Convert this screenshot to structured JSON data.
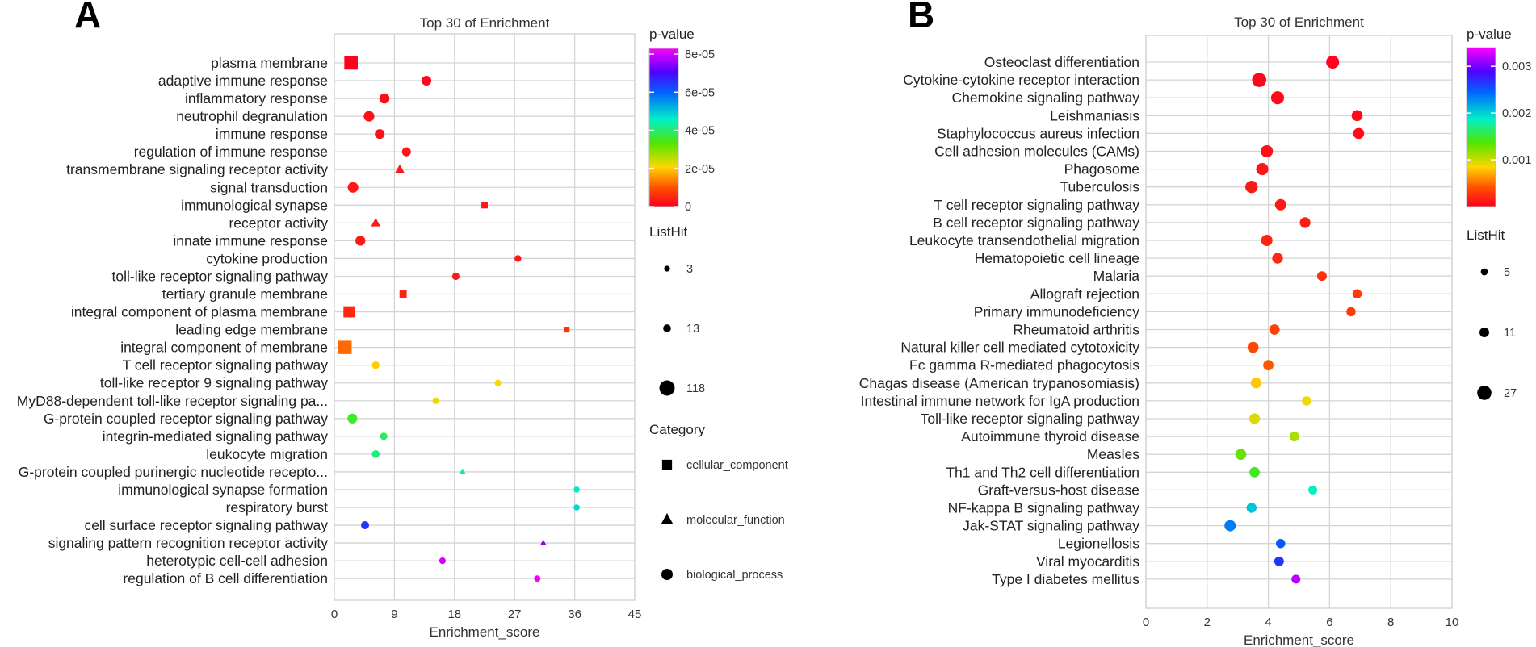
{
  "chart_data": [
    {
      "panel_label": "A",
      "type": "scatter",
      "title": "Top 30 of  Enrichment",
      "xlabel": "Enrichment_score",
      "xlim": [
        0,
        45
      ],
      "xticks": [
        "0",
        "9",
        "18",
        "27",
        "36",
        "45"
      ],
      "color_legend": {
        "title": "p-value",
        "min": 0,
        "max": 8.3e-05,
        "ticks": [
          "0",
          "2e-05",
          "4e-05",
          "6e-05",
          "8e-05"
        ],
        "tick_values": [
          0,
          2e-05,
          4e-05,
          6e-05,
          8e-05
        ]
      },
      "size_legend": {
        "title": "ListHit",
        "values": [
          "3",
          "13",
          "118"
        ]
      },
      "shape_legend": {
        "title": "Category",
        "items": [
          {
            "label": "cellular_component",
            "shape": "square"
          },
          {
            "label": "molecular_function",
            "shape": "triangle"
          },
          {
            "label": "biological_process",
            "shape": "circle"
          }
        ]
      },
      "points": [
        {
          "term": "plasma membrane",
          "x": 2.5,
          "p": 2e-07,
          "hits": 118,
          "category": "cellular_component"
        },
        {
          "term": "adaptive immune response",
          "x": 13.8,
          "p": 1e-06,
          "hits": 30,
          "category": "biological_process"
        },
        {
          "term": "inflammatory response",
          "x": 7.5,
          "p": 1.5e-06,
          "hits": 35,
          "category": "biological_process"
        },
        {
          "term": "neutrophil degranulation",
          "x": 5.2,
          "p": 2e-06,
          "hits": 40,
          "category": "biological_process"
        },
        {
          "term": "immune response",
          "x": 6.8,
          "p": 2e-06,
          "hits": 30,
          "category": "biological_process"
        },
        {
          "term": "regulation of immune response",
          "x": 10.8,
          "p": 2.5e-06,
          "hits": 22,
          "category": "biological_process"
        },
        {
          "term": "transmembrane signaling receptor activity",
          "x": 9.8,
          "p": 3e-06,
          "hits": 25,
          "category": "molecular_function"
        },
        {
          "term": "signal transduction",
          "x": 2.8,
          "p": 3e-06,
          "hits": 40,
          "category": "biological_process"
        },
        {
          "term": "immunological synapse",
          "x": 22.5,
          "p": 3e-06,
          "hits": 10,
          "category": "cellular_component"
        },
        {
          "term": "receptor activity",
          "x": 6.2,
          "p": 3e-06,
          "hits": 22,
          "category": "molecular_function"
        },
        {
          "term": "innate immune response",
          "x": 3.9,
          "p": 3e-06,
          "hits": 32,
          "category": "biological_process"
        },
        {
          "term": "cytokine production",
          "x": 27.5,
          "p": 3e-06,
          "hits": 7,
          "category": "biological_process"
        },
        {
          "term": "toll-like receptor signaling pathway",
          "x": 18.2,
          "p": 3e-06,
          "hits": 10,
          "category": "biological_process"
        },
        {
          "term": "tertiary granule membrane",
          "x": 10.3,
          "p": 4e-06,
          "hits": 16,
          "category": "cellular_component"
        },
        {
          "term": "integral component of plasma membrane",
          "x": 2.2,
          "p": 5e-06,
          "hits": 70,
          "category": "cellular_component"
        },
        {
          "term": "leading edge membrane",
          "x": 34.8,
          "p": 6e-06,
          "hits": 6,
          "category": "cellular_component"
        },
        {
          "term": "integral component of membrane",
          "x": 1.6,
          "p": 1.2e-05,
          "hits": 115,
          "category": "cellular_component"
        },
        {
          "term": "T cell receptor signaling pathway",
          "x": 6.2,
          "p": 2e-05,
          "hits": 12,
          "category": "biological_process"
        },
        {
          "term": "toll-like receptor 9 signaling pathway",
          "x": 24.5,
          "p": 2.1e-05,
          "hits": 6,
          "category": "biological_process"
        },
        {
          "term": "MyD88-dependent toll-like receptor signaling pa...",
          "x": 15.2,
          "p": 2.2e-05,
          "hits": 6,
          "category": "biological_process"
        },
        {
          "term": "G-protein coupled receptor signaling pathway",
          "x": 2.7,
          "p": 3.6e-05,
          "hits": 30,
          "category": "biological_process"
        },
        {
          "term": "integrin-mediated signaling pathway",
          "x": 7.4,
          "p": 3.9e-05,
          "hits": 10,
          "category": "biological_process"
        },
        {
          "term": "leukocyte migration",
          "x": 6.2,
          "p": 4.1e-05,
          "hits": 13,
          "category": "biological_process"
        },
        {
          "term": "G-protein coupled purinergic nucleotide recepto...",
          "x": 19.2,
          "p": 4.3e-05,
          "hits": 5,
          "category": "molecular_function"
        },
        {
          "term": "immunological synapse formation",
          "x": 36.3,
          "p": 4.6e-05,
          "hits": 4,
          "category": "biological_process"
        },
        {
          "term": "respiratory burst",
          "x": 36.3,
          "p": 4.8e-05,
          "hits": 4,
          "category": "biological_process"
        },
        {
          "term": "cell surface receptor signaling pathway",
          "x": 4.6,
          "p": 6.5e-05,
          "hits": 15,
          "category": "biological_process"
        },
        {
          "term": "signaling pattern recognition receptor activity",
          "x": 31.3,
          "p": 7.5e-05,
          "hits": 4,
          "category": "molecular_function"
        },
        {
          "term": "heterotypic cell-cell adhesion",
          "x": 16.2,
          "p": 8e-05,
          "hits": 6,
          "category": "biological_process"
        },
        {
          "term": "regulation of B cell differentiation",
          "x": 30.4,
          "p": 8.2e-05,
          "hits": 5,
          "category": "biological_process"
        }
      ]
    },
    {
      "panel_label": "B",
      "type": "scatter",
      "title": "Top 30 of  Enrichment",
      "xlabel": "Enrichment_score",
      "xlim": [
        0,
        10
      ],
      "xticks": [
        "0",
        "2",
        "4",
        "6",
        "8",
        "10"
      ],
      "color_legend": {
        "title": "p-value",
        "min": 0,
        "max": 0.0034,
        "ticks": [
          "0.001",
          "0.002",
          "0.003"
        ],
        "tick_values": [
          0.001,
          0.002,
          0.003
        ]
      },
      "size_legend": {
        "title": "ListHit",
        "values": [
          "5",
          "11",
          "27"
        ]
      },
      "points": [
        {
          "term": "Osteoclast differentiation",
          "x": 6.1,
          "p": 2e-05,
          "hits": 22
        },
        {
          "term": "Cytokine-cytokine receptor interaction",
          "x": 3.7,
          "p": 3e-05,
          "hits": 27
        },
        {
          "term": "Chemokine signaling pathway",
          "x": 4.3,
          "p": 5e-05,
          "hits": 22
        },
        {
          "term": "Leishmaniasis",
          "x": 6.9,
          "p": 5e-05,
          "hits": 15
        },
        {
          "term": "Staphylococcus aureus infection",
          "x": 6.95,
          "p": 6e-05,
          "hits": 15
        },
        {
          "term": "Cell adhesion molecules (CAMs)",
          "x": 3.95,
          "p": 8e-05,
          "hits": 19
        },
        {
          "term": "Phagosome",
          "x": 3.8,
          "p": 0.0001,
          "hits": 19
        },
        {
          "term": "Tuberculosis",
          "x": 3.45,
          "p": 0.00012,
          "hits": 20
        },
        {
          "term": "T cell receptor signaling pathway",
          "x": 4.4,
          "p": 0.00013,
          "hits": 16
        },
        {
          "term": "B cell receptor signaling pathway",
          "x": 5.2,
          "p": 0.00015,
          "hits": 14
        },
        {
          "term": "Leukocyte transendothelial migration",
          "x": 3.95,
          "p": 0.00018,
          "hits": 16
        },
        {
          "term": "Hematopoietic cell lineage",
          "x": 4.3,
          "p": 0.0002,
          "hits": 14
        },
        {
          "term": "Malaria",
          "x": 5.75,
          "p": 0.00025,
          "hits": 11
        },
        {
          "term": "Allograft rejection",
          "x": 6.9,
          "p": 0.00028,
          "hits": 10
        },
        {
          "term": "Primary immunodeficiency",
          "x": 6.7,
          "p": 0.0003,
          "hits": 10
        },
        {
          "term": "Rheumatoid arthritis",
          "x": 4.2,
          "p": 0.00033,
          "hits": 13
        },
        {
          "term": "Natural killer cell mediated cytotoxicity",
          "x": 3.5,
          "p": 0.00036,
          "hits": 15
        },
        {
          "term": "Fc gamma R-mediated phagocytosis",
          "x": 4.0,
          "p": 0.00042,
          "hits": 13
        },
        {
          "term": "Chagas disease (American trypanosomiasis)",
          "x": 3.6,
          "p": 0.0008,
          "hits": 14
        },
        {
          "term": "Intestinal immune network for IgA production",
          "x": 5.25,
          "p": 0.0009,
          "hits": 10
        },
        {
          "term": "Toll-like receptor signaling pathway",
          "x": 3.55,
          "p": 0.00095,
          "hits": 14
        },
        {
          "term": "Autoimmune thyroid disease",
          "x": 4.85,
          "p": 0.0011,
          "hits": 11
        },
        {
          "term": "Measles",
          "x": 3.1,
          "p": 0.0013,
          "hits": 15
        },
        {
          "term": "Th1 and Th2 cell differentiation",
          "x": 3.55,
          "p": 0.00145,
          "hits": 13
        },
        {
          "term": "Graft-versus-host disease",
          "x": 5.45,
          "p": 0.00185,
          "hits": 9
        },
        {
          "term": "NF-kappa B signaling pathway",
          "x": 3.45,
          "p": 0.00205,
          "hits": 12
        },
        {
          "term": "Jak-STAT signaling pathway",
          "x": 2.75,
          "p": 0.00235,
          "hits": 16
        },
        {
          "term": "Legionellosis",
          "x": 4.4,
          "p": 0.0025,
          "hits": 10
        },
        {
          "term": "Viral myocarditis",
          "x": 4.35,
          "p": 0.00265,
          "hits": 11
        },
        {
          "term": "Type I diabetes mellitus",
          "x": 4.9,
          "p": 0.0032,
          "hits": 9
        }
      ]
    }
  ]
}
